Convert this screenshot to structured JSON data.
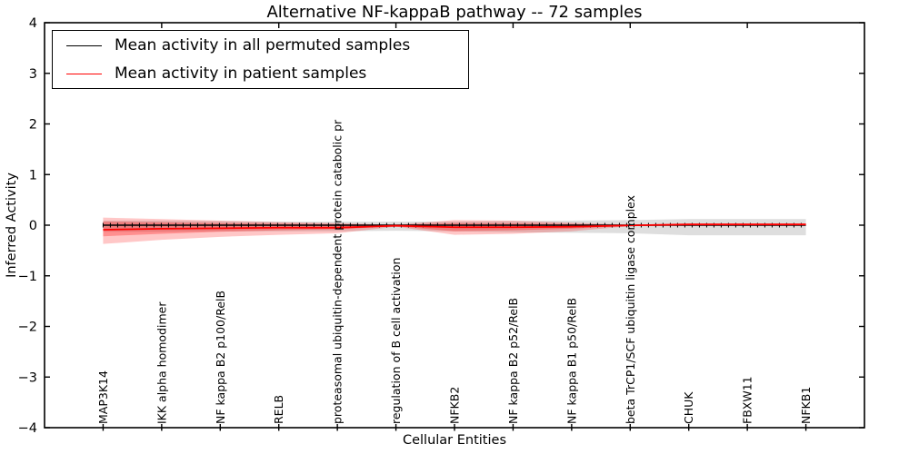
{
  "figure": {
    "title": "Alternative NF-kappaB pathway -- 72 samples",
    "xlabel": "Cellular Entities",
    "ylabel": "Inferred Activity"
  },
  "legend": {
    "position": "upper left",
    "entries": [
      {
        "label": "Mean activity in all permuted samples",
        "color": "#000000"
      },
      {
        "label": "Mean activity in patient samples",
        "color": "#ff0000"
      }
    ]
  },
  "chart_data": {
    "type": "line",
    "title": "Alternative NF-kappaB pathway -- 72 samples",
    "xlabel": "Cellular Entities",
    "ylabel": "Inferred Activity",
    "ylim": [
      -4,
      4
    ],
    "xlim": [
      0,
      14
    ],
    "grid": false,
    "yticks": [
      "4",
      "3",
      "2",
      "1",
      "0",
      "−1",
      "−2",
      "−3",
      "−4"
    ],
    "ytick_values": [
      4,
      3,
      2,
      1,
      0,
      -1,
      -2,
      -3,
      -4
    ],
    "xtick_values_topbottom": [
      2,
      4,
      6,
      8,
      10,
      12
    ],
    "x": [
      1,
      2,
      3,
      4,
      5,
      6,
      7,
      8,
      9,
      10,
      11,
      12,
      13
    ],
    "categories": [
      "MAP3K14",
      "IKK alpha homodimer",
      "NF kappa B2 p100/RelB",
      "RELB",
      "proteasomal ubiquitin-dependent protein catabolic pr",
      "regulation of B cell activation",
      "NFKB2",
      "NF kappa B2 p52/RelB",
      "NF kappa B1 p50/RelB",
      "beta TrCP1/SCF ubiquitin ligase complex",
      "CHUK",
      "FBXW11",
      "NFKB1"
    ],
    "series": [
      {
        "name": "Mean activity in all permuted samples",
        "color": "#000000",
        "marker": "plus",
        "values": [
          0,
          0,
          0,
          0,
          0,
          0,
          0,
          0,
          0,
          0,
          0,
          0,
          0
        ],
        "band": {
          "color": "rgba(0,0,0,0.13)",
          "upper": [
            0.09,
            0.09,
            0.08,
            0.07,
            0.07,
            0.07,
            0.07,
            0.08,
            0.09,
            0.1,
            0.12,
            0.12,
            0.12
          ],
          "lower": [
            -0.13,
            -0.13,
            -0.12,
            -0.12,
            -0.12,
            -0.11,
            -0.12,
            -0.14,
            -0.15,
            -0.16,
            -0.2,
            -0.2,
            -0.2
          ]
        }
      },
      {
        "name": "Mean activity in patient samples",
        "color": "#ff0000",
        "marker": "none",
        "values": [
          -0.09,
          -0.07,
          -0.06,
          -0.05,
          -0.05,
          -0.01,
          -0.04,
          -0.04,
          -0.03,
          -0.005,
          0.015,
          0.015,
          0.015
        ],
        "band_outer": {
          "color": "rgba(255,0,0,0.22)",
          "upper": [
            0.15,
            0.12,
            0.09,
            0.06,
            0.04,
            0.01,
            0.1,
            0.09,
            0.05,
            0.01,
            0.035,
            0.035,
            0.035
          ],
          "lower": [
            -0.37,
            -0.29,
            -0.23,
            -0.19,
            -0.16,
            -0.03,
            -0.19,
            -0.17,
            -0.12,
            -0.02,
            -0.005,
            -0.005,
            -0.005
          ]
        },
        "band_inner": {
          "color": "rgba(255,0,0,0.28)",
          "upper": [
            0.07,
            0.055,
            0.04,
            0.03,
            0.02,
            0.005,
            0.04,
            0.035,
            0.02,
            0.005,
            0.025,
            0.025,
            0.025
          ],
          "lower": [
            -0.22,
            -0.17,
            -0.13,
            -0.1,
            -0.08,
            -0.02,
            -0.12,
            -0.1,
            -0.07,
            -0.01,
            0.0,
            0.0,
            0.0
          ]
        }
      }
    ]
  }
}
